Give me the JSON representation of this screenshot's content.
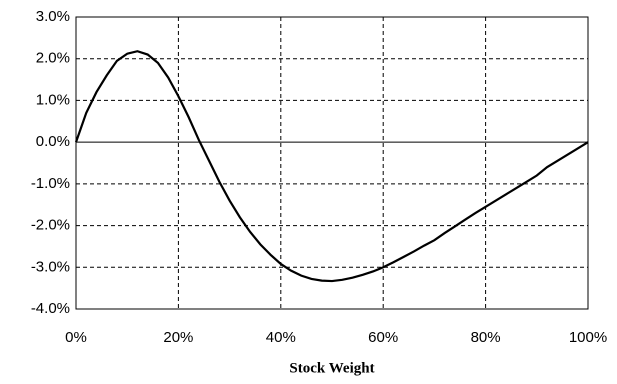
{
  "chart_data": {
    "type": "line",
    "xlabel": "Stock Weight",
    "x": [
      0,
      2,
      4,
      6,
      8,
      10,
      12,
      14,
      16,
      18,
      20,
      22,
      24,
      26,
      28,
      30,
      32,
      34,
      36,
      38,
      40,
      42,
      44,
      46,
      48,
      50,
      52,
      54,
      56,
      58,
      60,
      62,
      64,
      66,
      68,
      70,
      72,
      74,
      76,
      78,
      80,
      82,
      84,
      86,
      88,
      90,
      92,
      94,
      96,
      98,
      100
    ],
    "series": [
      {
        "color": "#000000",
        "values": [
          0,
          0.7,
          1.2,
          1.6,
          1.95,
          2.12,
          2.18,
          2.1,
          1.9,
          1.55,
          1.1,
          0.6,
          0.05,
          -0.45,
          -0.95,
          -1.4,
          -1.8,
          -2.15,
          -2.45,
          -2.7,
          -2.92,
          -3.08,
          -3.2,
          -3.28,
          -3.32,
          -3.33,
          -3.3,
          -3.25,
          -3.18,
          -3.1,
          -3.0,
          -2.88,
          -2.75,
          -2.62,
          -2.48,
          -2.35,
          -2.18,
          -2.02,
          -1.86,
          -1.7,
          -1.55,
          -1.4,
          -1.25,
          -1.1,
          -0.95,
          -0.8,
          -0.6,
          -0.45,
          -0.3,
          -0.15,
          0
        ]
      }
    ],
    "xlim": [
      0,
      100
    ],
    "xticks": [
      {
        "value": 0,
        "label": "0%"
      },
      {
        "value": 20,
        "label": "20%"
      },
      {
        "value": 40,
        "label": "40%"
      },
      {
        "value": 60,
        "label": "60%"
      },
      {
        "value": 80,
        "label": "80%"
      },
      {
        "value": 100,
        "label": "100%"
      }
    ],
    "ylim": [
      -4,
      3
    ],
    "yticks": [
      {
        "value": 3,
        "label": "3.0%"
      },
      {
        "value": 2,
        "label": "2.0%"
      },
      {
        "value": 1,
        "label": "1.0%"
      },
      {
        "value": 0,
        "label": "0.0%"
      },
      {
        "value": -1,
        "label": "-1.0%"
      },
      {
        "value": -2,
        "label": "-2.0%"
      },
      {
        "value": -3,
        "label": "-3.0%"
      },
      {
        "value": -4,
        "label": "-4.0%"
      }
    ],
    "grid": true
  }
}
